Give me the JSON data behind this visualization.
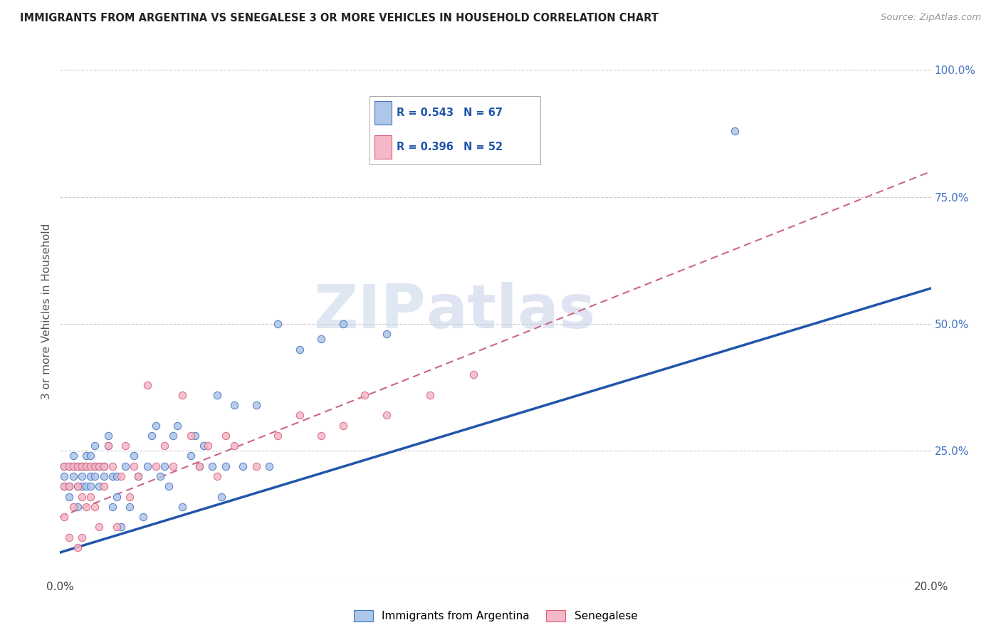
{
  "title": "IMMIGRANTS FROM ARGENTINA VS SENEGALESE 3 OR MORE VEHICLES IN HOUSEHOLD CORRELATION CHART",
  "source": "Source: ZipAtlas.com",
  "ylabel": "3 or more Vehicles in Household",
  "xlim": [
    0.0,
    0.2
  ],
  "ylim": [
    0.0,
    1.05
  ],
  "x_tick_positions": [
    0.0,
    0.04,
    0.08,
    0.12,
    0.16,
    0.2
  ],
  "x_tick_labels": [
    "0.0%",
    "",
    "",
    "",
    "",
    "20.0%"
  ],
  "y_tick_positions": [
    0.0,
    0.25,
    0.5,
    0.75,
    1.0
  ],
  "y_tick_labels_right": [
    "",
    "25.0%",
    "50.0%",
    "75.0%",
    "100.0%"
  ],
  "legend_label1": "Immigrants from Argentina",
  "legend_label2": "Senegalese",
  "legend_R1": "0.543",
  "legend_N1": "67",
  "legend_R2": "0.396",
  "legend_N2": "52",
  "color_argentina_fill": "#aec6e8",
  "color_argentina_edge": "#4472c4",
  "color_senegalese_fill": "#f4b8c8",
  "color_senegalese_edge": "#d9607a",
  "color_line_argentina": "#2255aa",
  "color_line_senegalese": "#cc6688",
  "watermark_zip": "ZIP",
  "watermark_atlas": "atlas",
  "color_watermark_zip": "#c5d5e8",
  "color_watermark_atlas": "#c5cfe8",
  "background_color": "#ffffff",
  "grid_color": "#cccccc",
  "line1_x0": 0.0,
  "line1_y0": 0.05,
  "line1_x1": 0.2,
  "line1_y1": 0.57,
  "line2_x0": 0.0,
  "line2_y0": 0.12,
  "line2_x1": 0.2,
  "line2_y1": 0.8,
  "argentina_x": [
    0.001,
    0.001,
    0.001,
    0.002,
    0.002,
    0.002,
    0.003,
    0.003,
    0.003,
    0.004,
    0.004,
    0.004,
    0.005,
    0.005,
    0.005,
    0.006,
    0.006,
    0.006,
    0.007,
    0.007,
    0.007,
    0.008,
    0.008,
    0.008,
    0.009,
    0.009,
    0.01,
    0.01,
    0.011,
    0.011,
    0.012,
    0.012,
    0.013,
    0.013,
    0.014,
    0.015,
    0.016,
    0.017,
    0.018,
    0.019,
    0.02,
    0.021,
    0.022,
    0.023,
    0.024,
    0.025,
    0.026,
    0.027,
    0.028,
    0.03,
    0.031,
    0.032,
    0.033,
    0.035,
    0.036,
    0.037,
    0.038,
    0.04,
    0.042,
    0.045,
    0.048,
    0.05,
    0.055,
    0.06,
    0.065,
    0.075,
    0.155
  ],
  "argentina_y": [
    0.2,
    0.18,
    0.22,
    0.22,
    0.18,
    0.16,
    0.22,
    0.2,
    0.24,
    0.22,
    0.18,
    0.14,
    0.22,
    0.2,
    0.18,
    0.22,
    0.18,
    0.24,
    0.2,
    0.24,
    0.18,
    0.22,
    0.2,
    0.26,
    0.22,
    0.18,
    0.22,
    0.2,
    0.26,
    0.28,
    0.2,
    0.14,
    0.2,
    0.16,
    0.1,
    0.22,
    0.14,
    0.24,
    0.2,
    0.12,
    0.22,
    0.28,
    0.3,
    0.2,
    0.22,
    0.18,
    0.28,
    0.3,
    0.14,
    0.24,
    0.28,
    0.22,
    0.26,
    0.22,
    0.36,
    0.16,
    0.22,
    0.34,
    0.22,
    0.34,
    0.22,
    0.5,
    0.45,
    0.47,
    0.5,
    0.48,
    0.88
  ],
  "senegalese_x": [
    0.001,
    0.001,
    0.001,
    0.002,
    0.002,
    0.002,
    0.003,
    0.003,
    0.004,
    0.004,
    0.004,
    0.005,
    0.005,
    0.005,
    0.006,
    0.006,
    0.007,
    0.007,
    0.008,
    0.008,
    0.009,
    0.009,
    0.01,
    0.01,
    0.011,
    0.012,
    0.013,
    0.014,
    0.015,
    0.016,
    0.017,
    0.018,
    0.02,
    0.022,
    0.024,
    0.026,
    0.028,
    0.03,
    0.032,
    0.034,
    0.036,
    0.038,
    0.04,
    0.045,
    0.05,
    0.055,
    0.06,
    0.065,
    0.07,
    0.075,
    0.085,
    0.095
  ],
  "senegalese_y": [
    0.22,
    0.18,
    0.12,
    0.22,
    0.18,
    0.08,
    0.22,
    0.14,
    0.22,
    0.18,
    0.06,
    0.22,
    0.16,
    0.08,
    0.22,
    0.14,
    0.22,
    0.16,
    0.22,
    0.14,
    0.22,
    0.1,
    0.22,
    0.18,
    0.26,
    0.22,
    0.1,
    0.2,
    0.26,
    0.16,
    0.22,
    0.2,
    0.38,
    0.22,
    0.26,
    0.22,
    0.36,
    0.28,
    0.22,
    0.26,
    0.2,
    0.28,
    0.26,
    0.22,
    0.28,
    0.32,
    0.28,
    0.3,
    0.36,
    0.32,
    0.36,
    0.4
  ]
}
